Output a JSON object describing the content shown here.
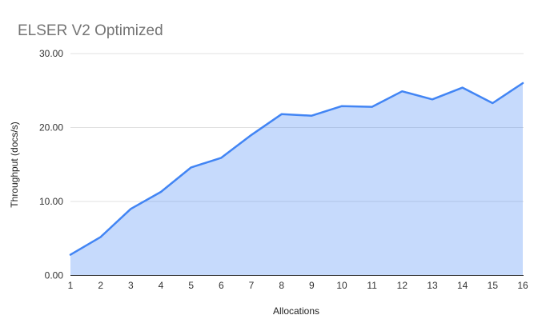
{
  "chart_data": {
    "type": "area",
    "title": "ELSER V2 Optimized",
    "xlabel": "Allocations",
    "ylabel": "Throughput (docs/s)",
    "categories": [
      "1",
      "2",
      "3",
      "4",
      "5",
      "6",
      "7",
      "8",
      "9",
      "10",
      "11",
      "12",
      "13",
      "14",
      "15",
      "16"
    ],
    "values": [
      2.8,
      5.2,
      9.0,
      11.3,
      14.6,
      15.9,
      19.0,
      21.8,
      21.6,
      22.9,
      22.8,
      24.9,
      23.8,
      25.4,
      23.3,
      26.0
    ],
    "ylim": [
      0,
      30
    ],
    "ytick_values": [
      0,
      10,
      20,
      30
    ],
    "ytick_labels": [
      "0.00",
      "10.00",
      "20.00",
      "30.00"
    ],
    "grid": true,
    "legend": "none",
    "colors": {
      "line": "#4285f4",
      "fill": "#4285f4",
      "fill_opacity": 0.3,
      "title_text": "#757575",
      "tick_text": "#333333",
      "axis_title_text": "#222222",
      "gridline": "#e0e0e0",
      "axis_line": "#333333"
    }
  }
}
